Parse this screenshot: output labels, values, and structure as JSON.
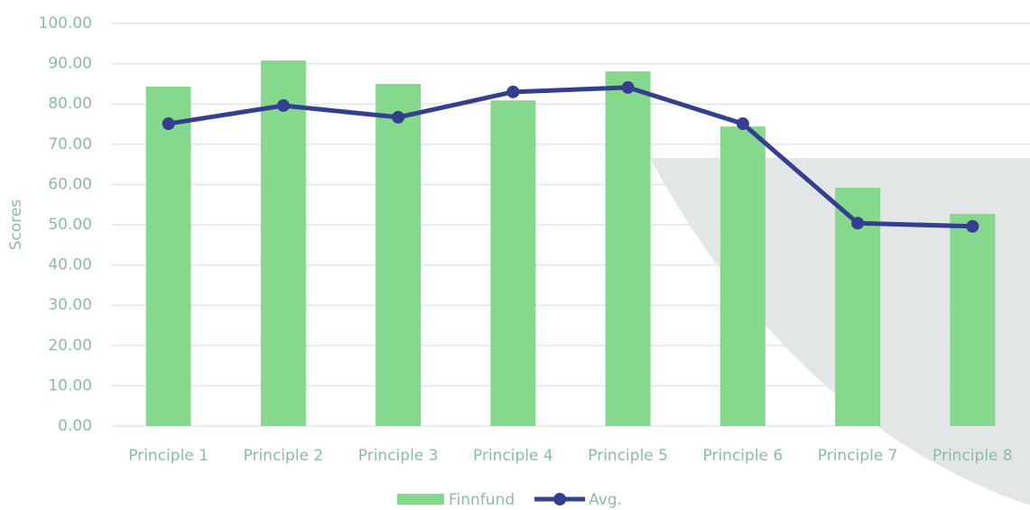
{
  "chart_data": {
    "type": "bar",
    "y_label": "Scores",
    "categories": [
      "Principle 1",
      "Principle 2",
      "Principle 3",
      "Principle 4",
      "Principle 5",
      "Principle 6",
      "Principle 7",
      "Principle 8"
    ],
    "series": [
      {
        "name": "Finnfund",
        "type": "bar",
        "color": "#86d98c",
        "values": [
          84.3,
          90.8,
          85.0,
          80.9,
          88.1,
          74.4,
          59.2,
          52.7
        ]
      },
      {
        "name": "Avg.",
        "type": "line",
        "color": "#343f8f",
        "values": [
          75.1,
          79.6,
          76.7,
          83.0,
          84.1,
          75.1,
          50.4,
          49.6
        ]
      }
    ],
    "ylim": [
      0,
      100
    ],
    "yticks": [
      {
        "value": 0,
        "label": "0.00"
      },
      {
        "value": 10,
        "label": "10.00"
      },
      {
        "value": 20,
        "label": "20.00"
      },
      {
        "value": 30,
        "label": "30.00"
      },
      {
        "value": 40,
        "label": "40.00"
      },
      {
        "value": 50,
        "label": "50.00"
      },
      {
        "value": 60,
        "label": "60.00"
      },
      {
        "value": 70,
        "label": "70.00"
      },
      {
        "value": 80,
        "label": "80.00"
      },
      {
        "value": 90,
        "label": "90.00"
      },
      {
        "value": 100,
        "label": "100.00"
      }
    ],
    "grid": true,
    "legend": "bottom"
  }
}
